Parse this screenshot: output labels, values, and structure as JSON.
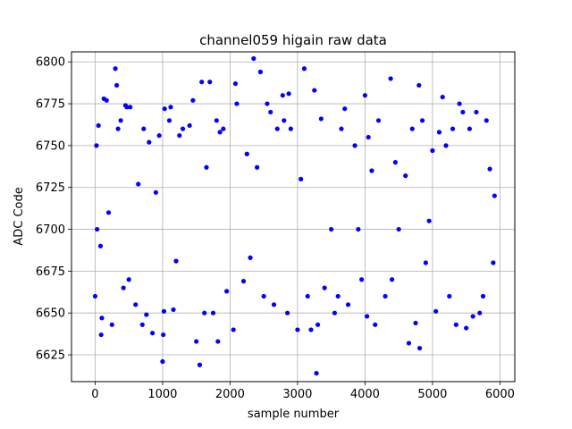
{
  "chart_data": {
    "type": "scatter",
    "title": "channel059 higain raw data",
    "xlabel": "sample number",
    "ylabel": "ADC Code",
    "xlim": [
      -350,
      6220
    ],
    "ylim": [
      6609,
      6806
    ],
    "x_ticks": [
      0,
      1000,
      2000,
      3000,
      4000,
      5000,
      6000
    ],
    "y_ticks": [
      6625,
      6650,
      6675,
      6700,
      6725,
      6750,
      6775,
      6800
    ],
    "grid": true,
    "marker_color": "#0000ff",
    "series": [
      {
        "points": [
          [
            0,
            6660
          ],
          [
            20,
            6750
          ],
          [
            30,
            6700
          ],
          [
            50,
            6762
          ],
          [
            80,
            6690
          ],
          [
            90,
            6637
          ],
          [
            100,
            6647
          ],
          [
            130,
            6778
          ],
          [
            170,
            6777
          ],
          [
            200,
            6710
          ],
          [
            250,
            6643
          ],
          [
            300,
            6796
          ],
          [
            320,
            6786
          ],
          [
            340,
            6760
          ],
          [
            380,
            6765
          ],
          [
            420,
            6665
          ],
          [
            450,
            6774
          ],
          [
            470,
            6773
          ],
          [
            500,
            6670
          ],
          [
            520,
            6773
          ],
          [
            600,
            6655
          ],
          [
            640,
            6727
          ],
          [
            700,
            6643
          ],
          [
            720,
            6760
          ],
          [
            760,
            6649
          ],
          [
            800,
            6752
          ],
          [
            850,
            6638
          ],
          [
            900,
            6722
          ],
          [
            950,
            6756
          ],
          [
            1000,
            6621
          ],
          [
            1010,
            6637
          ],
          [
            1020,
            6651
          ],
          [
            1030,
            6772
          ],
          [
            1100,
            6765
          ],
          [
            1120,
            6773
          ],
          [
            1160,
            6652
          ],
          [
            1200,
            6681
          ],
          [
            1250,
            6756
          ],
          [
            1300,
            6760
          ],
          [
            1400,
            6762
          ],
          [
            1450,
            6777
          ],
          [
            1500,
            6633
          ],
          [
            1550,
            6619
          ],
          [
            1580,
            6788
          ],
          [
            1620,
            6650
          ],
          [
            1650,
            6737
          ],
          [
            1700,
            6788
          ],
          [
            1750,
            6650
          ],
          [
            1800,
            6765
          ],
          [
            1820,
            6633
          ],
          [
            1850,
            6758
          ],
          [
            1900,
            6760
          ],
          [
            1950,
            6663
          ],
          [
            2050,
            6640
          ],
          [
            2080,
            6787
          ],
          [
            2100,
            6775
          ],
          [
            2200,
            6669
          ],
          [
            2250,
            6745
          ],
          [
            2300,
            6683
          ],
          [
            2350,
            6802
          ],
          [
            2400,
            6737
          ],
          [
            2450,
            6794
          ],
          [
            2500,
            6660
          ],
          [
            2550,
            6775
          ],
          [
            2600,
            6770
          ],
          [
            2650,
            6655
          ],
          [
            2700,
            6760
          ],
          [
            2780,
            6780
          ],
          [
            2800,
            6765
          ],
          [
            2850,
            6650
          ],
          [
            2870,
            6781
          ],
          [
            2900,
            6760
          ],
          [
            3000,
            6640
          ],
          [
            3050,
            6730
          ],
          [
            3100,
            6796
          ],
          [
            3150,
            6660
          ],
          [
            3200,
            6640
          ],
          [
            3250,
            6783
          ],
          [
            3280,
            6614
          ],
          [
            3300,
            6643
          ],
          [
            3350,
            6766
          ],
          [
            3400,
            6665
          ],
          [
            3500,
            6700
          ],
          [
            3550,
            6650
          ],
          [
            3600,
            6660
          ],
          [
            3650,
            6760
          ],
          [
            3700,
            6772
          ],
          [
            3750,
            6655
          ],
          [
            3850,
            6750
          ],
          [
            3900,
            6700
          ],
          [
            3950,
            6670
          ],
          [
            4000,
            6780
          ],
          [
            4030,
            6648
          ],
          [
            4050,
            6755
          ],
          [
            4100,
            6735
          ],
          [
            4150,
            6643
          ],
          [
            4200,
            6765
          ],
          [
            4300,
            6660
          ],
          [
            4380,
            6790
          ],
          [
            4400,
            6670
          ],
          [
            4450,
            6740
          ],
          [
            4500,
            6700
          ],
          [
            4600,
            6732
          ],
          [
            4650,
            6632
          ],
          [
            4700,
            6760
          ],
          [
            4750,
            6644
          ],
          [
            4800,
            6786
          ],
          [
            4810,
            6629
          ],
          [
            4850,
            6765
          ],
          [
            4900,
            6680
          ],
          [
            4950,
            6705
          ],
          [
            5000,
            6747
          ],
          [
            5050,
            6651
          ],
          [
            5100,
            6758
          ],
          [
            5150,
            6779
          ],
          [
            5200,
            6750
          ],
          [
            5250,
            6660
          ],
          [
            5300,
            6760
          ],
          [
            5350,
            6643
          ],
          [
            5400,
            6775
          ],
          [
            5450,
            6770
          ],
          [
            5500,
            6641
          ],
          [
            5550,
            6760
          ],
          [
            5600,
            6648
          ],
          [
            5650,
            6770
          ],
          [
            5700,
            6650
          ],
          [
            5750,
            6660
          ],
          [
            5800,
            6765
          ],
          [
            5850,
            6736
          ],
          [
            5900,
            6680
          ],
          [
            5920,
            6720
          ]
        ]
      }
    ]
  }
}
